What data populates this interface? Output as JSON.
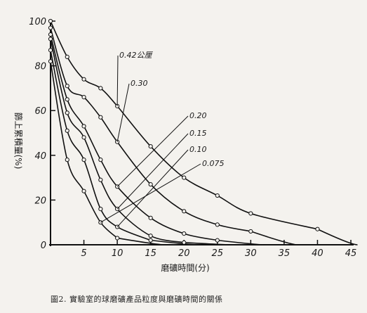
{
  "chart_data": {
    "type": "line",
    "title": "",
    "xlabel": "磨礦時間(分)",
    "ylabel": "篩上累積量(%)",
    "xlim": [
      0,
      45
    ],
    "ylim": [
      0,
      100
    ],
    "x_ticks": [
      "5",
      "10",
      "15",
      "20",
      "25",
      "30",
      "35",
      "40",
      "45"
    ],
    "y_ticks": [
      "0",
      "20",
      "40",
      "60",
      "80",
      "100"
    ],
    "grid": false,
    "series": [
      {
        "name": "0.42公厘",
        "x": [
          0,
          2.5,
          5,
          7.5,
          10,
          15,
          20,
          25,
          30,
          40
        ],
        "y": [
          100,
          84,
          74,
          70,
          62,
          44,
          30,
          22,
          14,
          7
        ]
      },
      {
        "name": "0.30",
        "x": [
          0,
          2.5,
          5,
          7.5,
          10,
          15,
          20,
          25,
          30
        ],
        "y": [
          97,
          71,
          66,
          57,
          46,
          27,
          15,
          9,
          6
        ]
      },
      {
        "name": "0.20",
        "x": [
          0,
          2.5,
          5,
          7.5,
          10,
          15,
          20,
          25
        ],
        "y": [
          94,
          65,
          53,
          38,
          26,
          12,
          5,
          2
        ]
      },
      {
        "name": "0.15",
        "x": [
          0,
          2.5,
          5,
          7.5,
          10,
          15,
          20
        ],
        "y": [
          92,
          59,
          48,
          29,
          16,
          4,
          1
        ]
      },
      {
        "name": "0.10",
        "x": [
          0,
          2.5,
          5,
          7.5,
          10,
          15
        ],
        "y": [
          87,
          51,
          38,
          16,
          8,
          2
        ]
      },
      {
        "name": "0.075",
        "x": [
          0,
          2.5,
          5,
          7.5,
          10
        ],
        "y": [
          82,
          38,
          24,
          10,
          3
        ]
      }
    ]
  },
  "caption": "圖2. 實驗室的球磨礦產品粒度與磨礦時間的關係"
}
